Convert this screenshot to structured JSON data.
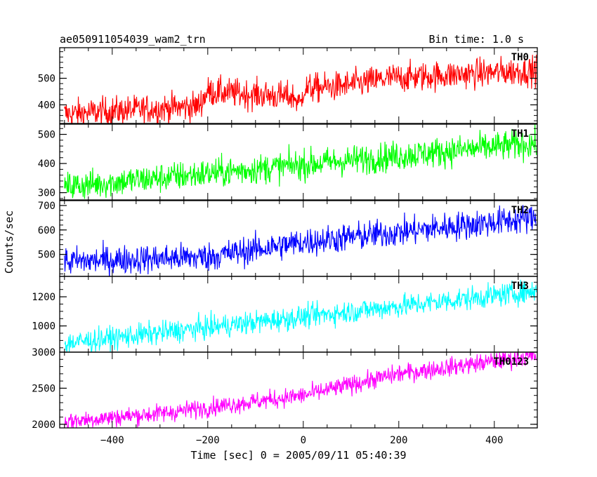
{
  "header": {
    "title": "ae050911054039_wam2_trn",
    "bin_time": "Bin time: 1.0 s"
  },
  "chart_data": {
    "type": "line",
    "xlabel": "Time [sec] 0 = 2005/09/11 05:40:39",
    "ylabel": "Counts/sec",
    "xlim": [
      -510,
      490
    ],
    "x_start": -500,
    "x_end": 488,
    "x_step": 1,
    "x_ticks": [
      -400,
      -200,
      0,
      200,
      400
    ],
    "x_tick_labels": [
      "−400",
      "−200",
      "0",
      "200",
      "400"
    ],
    "grid": false,
    "panels": [
      {
        "name": "TH0",
        "color": "#ff0000",
        "ylim": [
          330,
          615
        ],
        "y_ticks": [
          400,
          500
        ],
        "y_tick_labels": [
          "400",
          "500"
        ],
        "trend": [
          [
            -500,
            365
          ],
          [
            -220,
            395
          ],
          [
            -200,
            450
          ],
          [
            -20,
            430
          ],
          [
            -5,
            400
          ],
          [
            0,
            460
          ],
          [
            80,
            470
          ],
          [
            180,
            500
          ],
          [
            488,
            530
          ]
        ],
        "noise": 28
      },
      {
        "name": "TH1",
        "color": "#00ff00",
        "ylim": [
          275,
          535
        ],
        "y_ticks": [
          300,
          400,
          500
        ],
        "y_tick_labels": [
          "300",
          "400",
          "500"
        ],
        "trend": [
          [
            -500,
            320
          ],
          [
            488,
            470
          ]
        ],
        "noise": 26
      },
      {
        "name": "TH2",
        "color": "#0000ff",
        "ylim": [
          410,
          720
        ],
        "y_ticks": [
          500,
          600,
          700
        ],
        "y_tick_labels": [
          "500",
          "600",
          "700"
        ],
        "trend": [
          [
            -500,
            470
          ],
          [
            -200,
            490
          ],
          [
            0,
            550
          ],
          [
            488,
            650
          ]
        ],
        "noise": 30
      },
      {
        "name": "TH3",
        "color": "#00ffff",
        "ylim": [
          820,
          1340
        ],
        "y_ticks": [
          1000,
          1200
        ],
        "y_tick_labels": [
          "1000",
          "1200"
        ],
        "trend": [
          [
            -500,
            880
          ],
          [
            488,
            1240
          ]
        ],
        "noise": 40
      },
      {
        "name": "TH0123",
        "color": "#ff00ff",
        "ylim": [
          1950,
          3000
        ],
        "y_ticks": [
          2000,
          2500,
          3000
        ],
        "y_tick_labels": [
          "2000",
          "2500",
          "3000"
        ],
        "trend": [
          [
            -500,
            2040
          ],
          [
            -300,
            2150
          ],
          [
            0,
            2400
          ],
          [
            200,
            2700
          ],
          [
            488,
            2950
          ]
        ],
        "noise": 65
      }
    ]
  }
}
